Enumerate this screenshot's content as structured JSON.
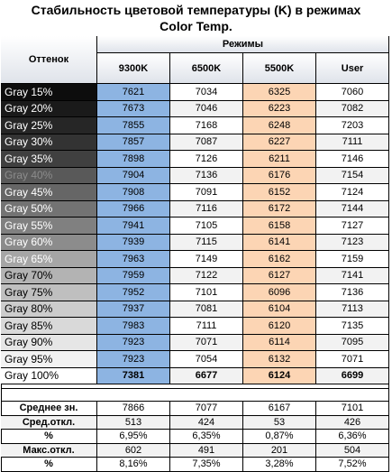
{
  "title_line1": "Стабильность цветовой температуры (K) в режимах",
  "title_line2": "Color Temp.",
  "header": {
    "shade_label": "Оттенок",
    "modes_label": "Режимы",
    "modes": [
      "9300K",
      "6500K",
      "5500K",
      "User"
    ]
  },
  "rows": [
    {
      "label": "Gray 15%",
      "values": [
        "7621",
        "7034",
        "6325",
        "7060"
      ],
      "bg": "#0d0d0d",
      "fg": "#ffffff"
    },
    {
      "label": "Gray 20%",
      "values": [
        "7673",
        "7046",
        "6223",
        "7082"
      ],
      "bg": "#1a1a1a",
      "fg": "#ffffff"
    },
    {
      "label": "Gray 25%",
      "values": [
        "7855",
        "7168",
        "6248",
        "7203"
      ],
      "bg": "#262626",
      "fg": "#ffffff"
    },
    {
      "label": "Gray 30%",
      "values": [
        "7857",
        "7087",
        "6227",
        "7111"
      ],
      "bg": "#333333",
      "fg": "#ffffff"
    },
    {
      "label": "Gray 35%",
      "values": [
        "7898",
        "7126",
        "6211",
        "7146"
      ],
      "bg": "#404040",
      "fg": "#ffffff"
    },
    {
      "label": "Gray 40%",
      "values": [
        "7904",
        "7136",
        "6176",
        "7154"
      ],
      "bg": "#595959",
      "fg": "#8c8c8c"
    },
    {
      "label": "Gray 45%",
      "values": [
        "7908",
        "7091",
        "6152",
        "7124"
      ],
      "bg": "#666666",
      "fg": "#ffffff"
    },
    {
      "label": "Gray 50%",
      "values": [
        "7966",
        "7116",
        "6172",
        "7144"
      ],
      "bg": "#737373",
      "fg": "#ffffff"
    },
    {
      "label": "Gray 55%",
      "values": [
        "7941",
        "7105",
        "6158",
        "7127"
      ],
      "bg": "#808080",
      "fg": "#ffffff"
    },
    {
      "label": "Gray 60%",
      "values": [
        "7939",
        "7115",
        "6141",
        "7123"
      ],
      "bg": "#8c8c8c",
      "fg": "#ffffff"
    },
    {
      "label": "Gray 65%",
      "values": [
        "7963",
        "7149",
        "6162",
        "7159"
      ],
      "bg": "#a6a6a6",
      "fg": "#ffffff"
    },
    {
      "label": "Gray 70%",
      "values": [
        "7959",
        "7122",
        "6127",
        "7141"
      ],
      "bg": "#b3b3b3",
      "fg": "#000000"
    },
    {
      "label": "Gray 75%",
      "values": [
        "7952",
        "7101",
        "6096",
        "7136"
      ],
      "bg": "#bfbfbf",
      "fg": "#000000"
    },
    {
      "label": "Gray 80%",
      "values": [
        "7937",
        "7081",
        "6104",
        "7113"
      ],
      "bg": "#cccccc",
      "fg": "#000000"
    },
    {
      "label": "Gray 85%",
      "values": [
        "7983",
        "7111",
        "6120",
        "7135"
      ],
      "bg": "#d9d9d9",
      "fg": "#000000"
    },
    {
      "label": "Gray 90%",
      "values": [
        "7923",
        "7071",
        "6114",
        "7095"
      ],
      "bg": "#e6e6e6",
      "fg": "#000000"
    },
    {
      "label": "Gray 95%",
      "values": [
        "7923",
        "7054",
        "6132",
        "7071"
      ],
      "bg": "#f2f2f2",
      "fg": "#000000"
    },
    {
      "label": "Gray 100%",
      "values": [
        "7381",
        "6677",
        "6124",
        "6699"
      ],
      "bg": "#ffffff",
      "fg": "#000000",
      "bold": true
    }
  ],
  "stats": [
    {
      "label": "Среднее зн.",
      "values": [
        "7866",
        "7077",
        "6167",
        "7101"
      ]
    },
    {
      "label": "Сред.откл.",
      "values": [
        "513",
        "424",
        "53",
        "426"
      ]
    },
    {
      "label": "%",
      "values": [
        "6,95%",
        "6,35%",
        "0,87%",
        "6,36%"
      ]
    },
    {
      "label": "Макс.откл.",
      "values": [
        "602",
        "491",
        "201",
        "504"
      ]
    },
    {
      "label": "%",
      "values": [
        "8,16%",
        "7,35%",
        "3,28%",
        "7,52%"
      ]
    }
  ],
  "colors": {
    "col_9300": "#8db4e2",
    "col_5500": "#fcd5b4",
    "header_bg": "#dfe3ea",
    "zebra": "#f2f2f2"
  }
}
